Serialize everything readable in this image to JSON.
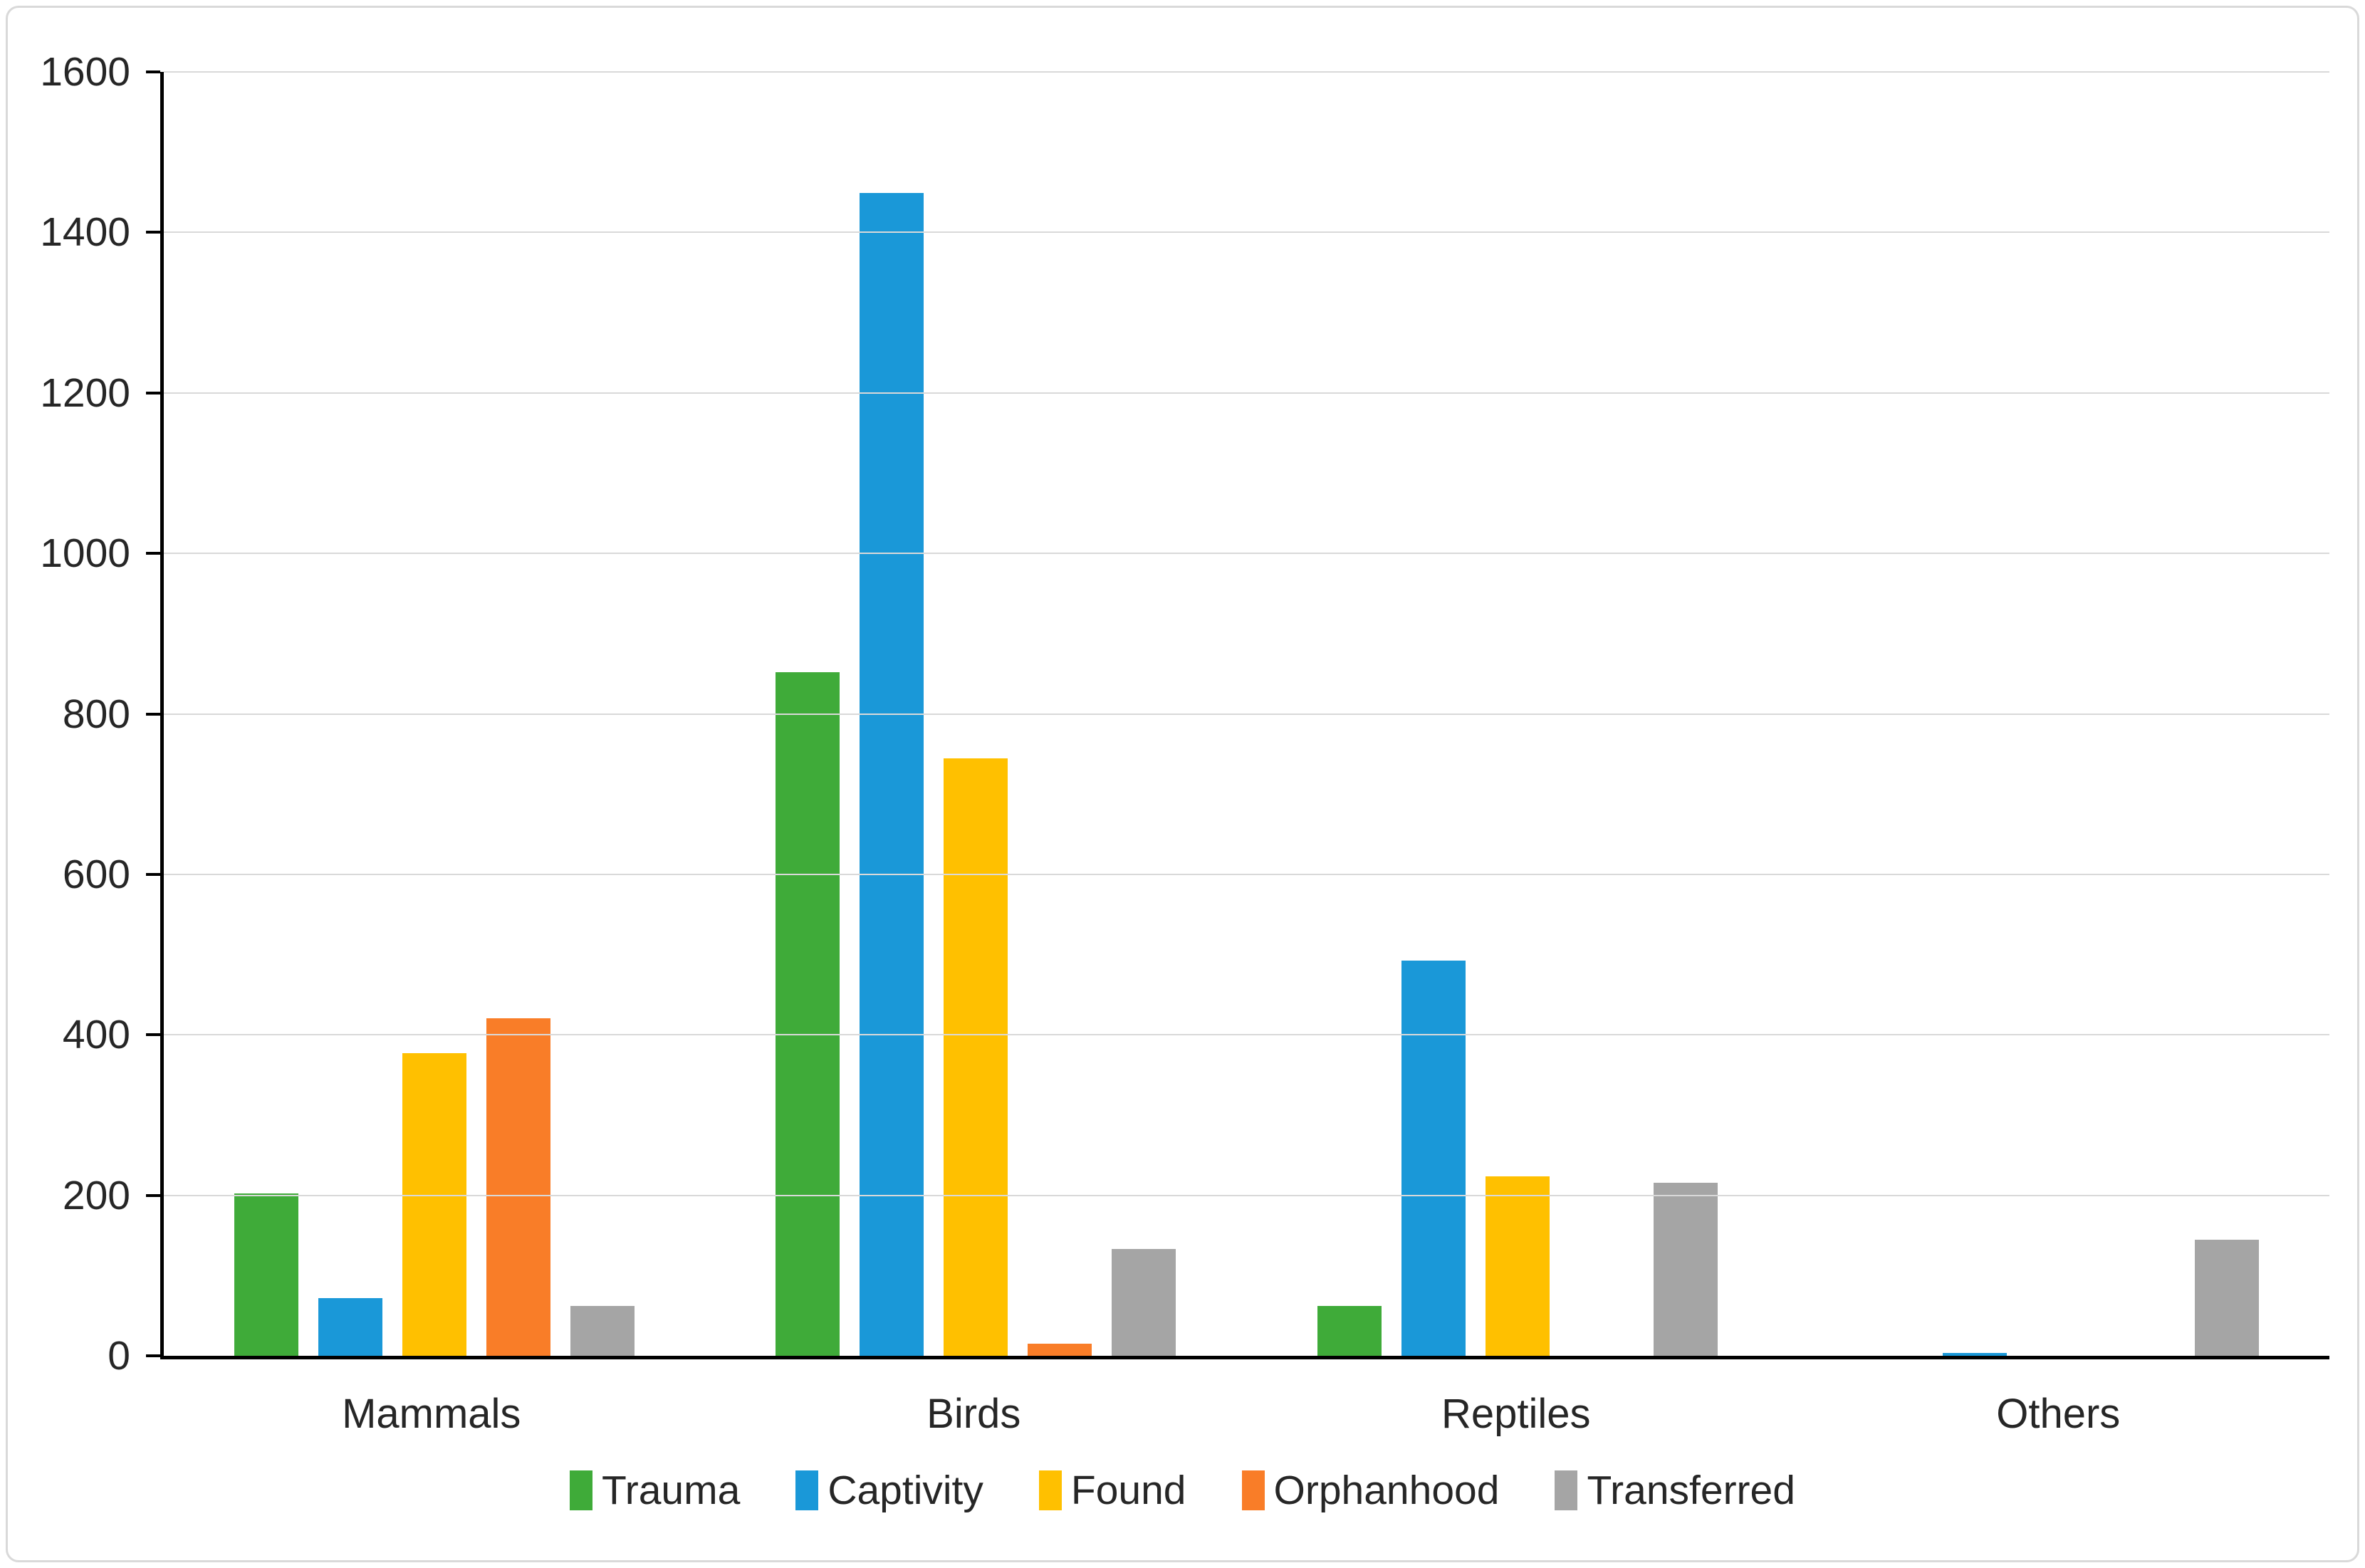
{
  "chart_data": {
    "type": "bar",
    "title": "",
    "xlabel": "",
    "ylabel": "",
    "categories": [
      "Mammals",
      "Birds",
      "Reptiles",
      "Others"
    ],
    "series": [
      {
        "name": "Trauma",
        "color": "#3FAB39",
        "values": [
          202,
          852,
          62,
          0
        ]
      },
      {
        "name": "Captivity",
        "color": "#1A98D8",
        "values": [
          72,
          1449,
          493,
          4
        ]
      },
      {
        "name": "Found",
        "color": "#FFC000",
        "values": [
          377,
          745,
          224,
          0
        ]
      },
      {
        "name": "Orphanhood",
        "color": "#F97D28",
        "values": [
          421,
          15,
          0,
          0
        ]
      },
      {
        "name": "Transferred",
        "color": "#A5A5A5",
        "values": [
          62,
          133,
          216,
          145
        ]
      }
    ],
    "ylim": [
      0,
      1600
    ],
    "yticks": [
      0,
      200,
      400,
      600,
      800,
      1000,
      1200,
      1400,
      1600
    ],
    "grid": "horizontal",
    "legend_position": "bottom"
  },
  "style": {
    "background": "#FFFFFF",
    "frame_border_color": "#D9D9D9",
    "gridline_color": "#D9D9D9",
    "axis_color": "#000000",
    "text_color": "#262626"
  }
}
